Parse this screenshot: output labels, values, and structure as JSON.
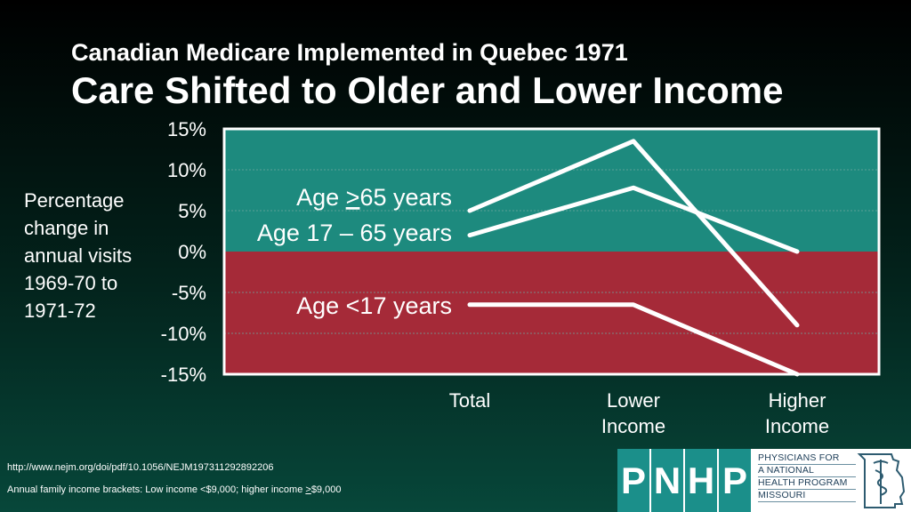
{
  "header": {
    "subtitle": "Canadian Medicare Implemented in Quebec 1971",
    "title": "Care Shifted to Older and Lower Income"
  },
  "chart_data": {
    "type": "line",
    "ylabel": "Percentage change in annual visits 1969-70 to 1971-72",
    "categories": [
      "Total",
      "Lower Income",
      "Higher Income"
    ],
    "category_lines": [
      [
        "Total"
      ],
      [
        "Lower",
        "Income"
      ],
      [
        "Higher",
        "Income"
      ]
    ],
    "y_ticks": [
      "15%",
      "10%",
      "5%",
      "0%",
      "-5%",
      "-10%",
      "-15%"
    ],
    "y_tick_values": [
      15,
      10,
      5,
      0,
      -5,
      -10,
      -15
    ],
    "ylim": [
      -15,
      15
    ],
    "grid": true,
    "series": [
      {
        "name": "Age >65 years",
        "name_parts": [
          "Age ",
          ">",
          "65 years"
        ],
        "values": [
          5,
          13.5,
          -9
        ]
      },
      {
        "name": "Age 17 – 65 years",
        "values": [
          2,
          7.8,
          0
        ]
      },
      {
        "name": "Age <17 years",
        "values": [
          -6.5,
          -6.5,
          -15
        ]
      }
    ],
    "colors": {
      "positive_region": "#1d8a7e",
      "negative_region": "#a52a38",
      "line": "#ffffff"
    }
  },
  "footer": {
    "source": "http://www.nejm.org/doi/pdf/10.1056/NEJM197311292892206",
    "note_prefix": "Annual family income brackets: Low income <$9,000; higher income ",
    "note_symbol": ">",
    "note_suffix": "$9,000"
  },
  "logo": {
    "letters": [
      "P",
      "N",
      "H",
      "P"
    ],
    "org_lines": [
      "PHYSICIANS FOR",
      "A NATIONAL",
      "HEALTH PROGRAM",
      "MISSOURI"
    ],
    "icon": "missouri-state-caduceus-icon"
  }
}
